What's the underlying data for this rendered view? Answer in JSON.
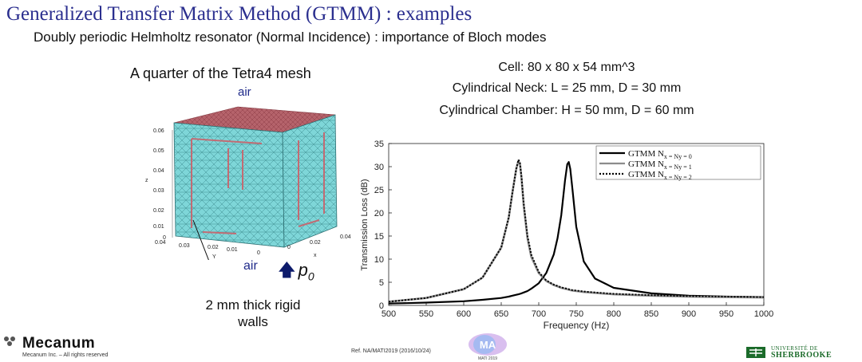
{
  "slide": {
    "title": "Generalized Transfer Matrix Method (GTMM) : examples",
    "subtitle": "Doubly periodic Helmholtz resonator (Normal Incidence) : importance of Bloch modes"
  },
  "mesh_panel": {
    "caption": "A quarter of the Tetra4 mesh",
    "air_top": "air",
    "air_bottom": "air",
    "pressure_label": "p",
    "pressure_subscript": "0",
    "wall_label_line1": "2 mm thick rigid",
    "wall_label_line2": "walls",
    "z_axis_label": "z",
    "y_axis_label": "Y",
    "x_axis_label": "x",
    "z_ticks": [
      "0.06",
      "0.05",
      "0.04",
      "0.03",
      "0.02",
      "0.01",
      "0"
    ],
    "y_ticks": [
      "0.04",
      "0.03",
      "0.02",
      "0.01",
      "0"
    ],
    "x_ticks": [
      "0",
      "0.02",
      "0.04"
    ],
    "colors": {
      "mesh_face": "#7ed6d8",
      "mesh_top": "#b5636b",
      "mesh_line": "#3f8f92",
      "wall": "#c26b73"
    }
  },
  "parameters": {
    "cell": "Cell: 80 x 80 x 54 mm^3",
    "neck": "Cylindrical Neck: L = 25 mm, D = 30 mm",
    "chamber": "Cylindrical Chamber: H = 50 mm, D = 60 mm"
  },
  "chart_data": {
    "type": "line",
    "title": "",
    "xlabel": "Frequency (Hz)",
    "ylabel": "Transmission Loss (dB)",
    "xlim": [
      500,
      1000
    ],
    "ylim": [
      0,
      35
    ],
    "xticks": [
      500,
      550,
      600,
      650,
      700,
      750,
      800,
      850,
      900,
      950,
      1000
    ],
    "yticks": [
      0,
      5,
      10,
      15,
      20,
      25,
      30,
      35
    ],
    "legend_position": "top-right",
    "x": [
      500,
      550,
      600,
      625,
      650,
      660,
      665,
      670,
      673,
      675,
      677,
      680,
      685,
      690,
      700,
      710,
      720,
      725,
      730,
      735,
      738,
      740,
      742,
      745,
      750,
      760,
      775,
      800,
      850,
      900,
      950,
      1000
    ],
    "series": [
      {
        "name": "GTMM N_x = N_y = 0",
        "legend_main": "GTMM N",
        "legend_rest": "x = N",
        "legend_tail": "y = 0",
        "style": "solid-black",
        "values": [
          0.4,
          0.6,
          0.9,
          1.2,
          1.6,
          1.9,
          2.1,
          2.3,
          2.4,
          2.5,
          2.6,
          2.8,
          3.1,
          3.6,
          4.8,
          7.0,
          11.0,
          14.5,
          19.5,
          27.0,
          30.5,
          31.0,
          29.5,
          25.0,
          17.0,
          9.5,
          5.8,
          3.8,
          2.6,
          2.1,
          1.9,
          1.8
        ]
      },
      {
        "name": "GTMM N_x = N_y = 1",
        "legend_main": "GTMM N",
        "legend_rest": "x = N",
        "legend_tail": "y = 1",
        "style": "solid-gray",
        "values": [
          0.8,
          1.6,
          3.5,
          6.0,
          12.5,
          19.0,
          24.5,
          29.5,
          31.3,
          30.5,
          27.5,
          21.5,
          14.5,
          10.5,
          7.0,
          5.3,
          4.4,
          4.1,
          3.8,
          3.6,
          3.5,
          3.4,
          3.3,
          3.2,
          3.1,
          2.9,
          2.7,
          2.4,
          2.1,
          1.9,
          1.8,
          1.7
        ]
      },
      {
        "name": "GTMM N_x = N_y = 2",
        "legend_main": "GTMM N",
        "legend_rest": "x = N",
        "legend_tail": "y = 2",
        "style": "dotted-black",
        "values": [
          0.8,
          1.6,
          3.5,
          6.0,
          12.5,
          19.0,
          24.5,
          29.5,
          31.5,
          30.8,
          27.8,
          22.0,
          15.0,
          11.0,
          7.2,
          5.4,
          4.5,
          4.2,
          3.9,
          3.7,
          3.6,
          3.5,
          3.4,
          3.3,
          3.2,
          3.0,
          2.8,
          2.5,
          2.2,
          2.0,
          1.9,
          1.8
        ]
      }
    ]
  },
  "footer": {
    "company": "Mecanum",
    "rights": "Mecanum Inc. – All rights reserved",
    "reference": "Ref. NA/MATI2019  (2016/10/24)",
    "mati_logo_text": "MA",
    "mati_logo_sub": "MATI 2019",
    "univ_line1": "UNIVERSITÉ DE",
    "univ_line2": "SHERBROOKE"
  }
}
